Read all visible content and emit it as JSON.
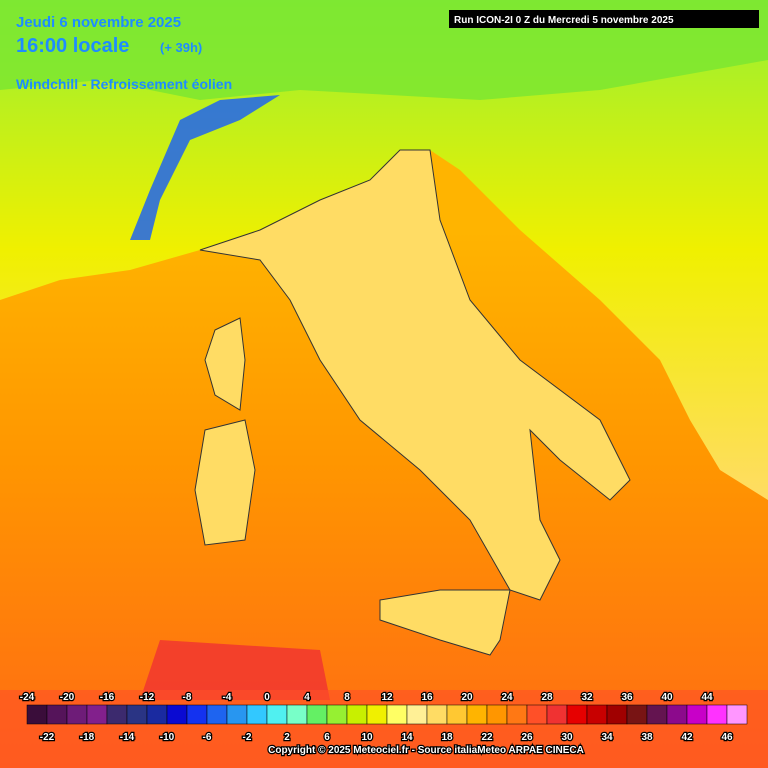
{
  "header": {
    "date": "Jeudi 6 novembre 2025",
    "time": "16:00 locale",
    "lead": "(+ 39h)",
    "variable": "Windchill - Refroissement éolien",
    "run": "Run ICON-2I 0 Z du Mercredi 5 novembre 2025"
  },
  "legend": {
    "values": [
      -24,
      -22,
      -20,
      -18,
      -16,
      -14,
      -12,
      -10,
      -8,
      -6,
      -4,
      -2,
      0,
      2,
      4,
      6,
      8,
      10,
      12,
      14,
      16,
      18,
      20,
      22,
      24,
      26,
      28,
      30,
      32,
      34,
      36,
      38,
      40,
      42,
      44,
      46
    ],
    "colors": [
      "#3a0d3a",
      "#55145a",
      "#6e1c78",
      "#82208c",
      "#3c2a6e",
      "#2a3484",
      "#1a2aa0",
      "#0a0ad2",
      "#1432f0",
      "#1e64f0",
      "#2896f0",
      "#32c8ff",
      "#50f0f0",
      "#78ffc8",
      "#64f064",
      "#96f032",
      "#c8f000",
      "#f0f000",
      "#ffff64",
      "#fff096",
      "#ffdc64",
      "#ffc832",
      "#ffb400",
      "#ff9600",
      "#ff7814",
      "#ff5028",
      "#f03232",
      "#e60000",
      "#c80000",
      "#a00000",
      "#781414",
      "#641450",
      "#8c0a8c",
      "#c800c8",
      "#ff32ff",
      "#ff96ff"
    ]
  },
  "footer": {
    "copyright": "Copyright © 2025 Meteociel.fr - Source italiaMeteo ARPAE CINECA"
  }
}
